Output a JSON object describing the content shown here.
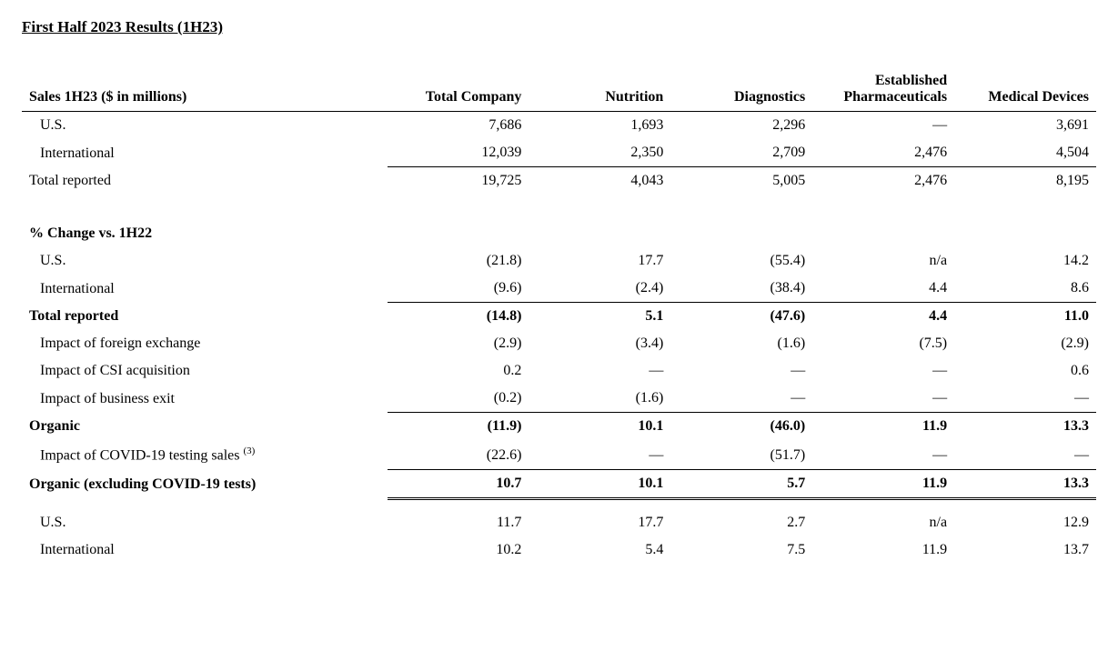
{
  "title": "First Half 2023 Results (1H23)",
  "columns": {
    "sales_label": "Sales 1H23 ($ in millions)",
    "c1": "Total Company",
    "c2": "Nutrition",
    "c3": "Diagnostics",
    "c4": "Established Pharmaceuticals",
    "c5": "Medical Devices"
  },
  "sales": {
    "us": {
      "label": "U.S.",
      "c1": "7,686",
      "c2": "1,693",
      "c3": "2,296",
      "c4": "—",
      "c5": "3,691"
    },
    "intl": {
      "label": "International",
      "c1": "12,039",
      "c2": "2,350",
      "c3": "2,709",
      "c4": "2,476",
      "c5": "4,504"
    },
    "total": {
      "label": "Total reported",
      "c1": "19,725",
      "c2": "4,043",
      "c3": "5,005",
      "c4": "2,476",
      "c5": "8,195"
    }
  },
  "change_header": "% Change vs. 1H22",
  "change": {
    "us": {
      "label": "U.S.",
      "c1": "(21.8)",
      "c2": "17.7",
      "c3": "(55.4)",
      "c4": "n/a",
      "c5": "14.2"
    },
    "intl": {
      "label": "International",
      "c1": "(9.6)",
      "c2": "(2.4)",
      "c3": "(38.4)",
      "c4": "4.4",
      "c5": "8.6"
    },
    "total": {
      "label": "Total reported",
      "c1": "(14.8)",
      "c2": "5.1",
      "c3": "(47.6)",
      "c4": "4.4",
      "c5": "11.0"
    },
    "fx": {
      "label": "Impact of foreign exchange",
      "c1": "(2.9)",
      "c2": "(3.4)",
      "c3": "(1.6)",
      "c4": "(7.5)",
      "c5": "(2.9)"
    },
    "csi": {
      "label": "Impact of CSI acquisition",
      "c1": "0.2",
      "c2": "—",
      "c3": "—",
      "c4": "—",
      "c5": "0.6"
    },
    "exit": {
      "label": "Impact of business exit",
      "c1": "(0.2)",
      "c2": "(1.6)",
      "c3": "—",
      "c4": "—",
      "c5": "—"
    },
    "organic": {
      "label": "Organic",
      "c1": "(11.9)",
      "c2": "10.1",
      "c3": "(46.0)",
      "c4": "11.9",
      "c5": "13.3"
    },
    "covid": {
      "label": "Impact of COVID-19 testing sales ",
      "footnote": "(3)",
      "c1": "(22.6)",
      "c2": "—",
      "c3": "(51.7)",
      "c4": "—",
      "c5": "—"
    },
    "organicx": {
      "label": "Organic (excluding COVID-19 tests)",
      "c1": "10.7",
      "c2": "10.1",
      "c3": "5.7",
      "c4": "11.9",
      "c5": "13.3"
    },
    "us2": {
      "label": "U.S.",
      "c1": "11.7",
      "c2": "17.7",
      "c3": "2.7",
      "c4": "n/a",
      "c5": "12.9"
    },
    "intl2": {
      "label": "International",
      "c1": "10.2",
      "c2": "5.4",
      "c3": "7.5",
      "c4": "11.9",
      "c5": "13.7"
    }
  }
}
